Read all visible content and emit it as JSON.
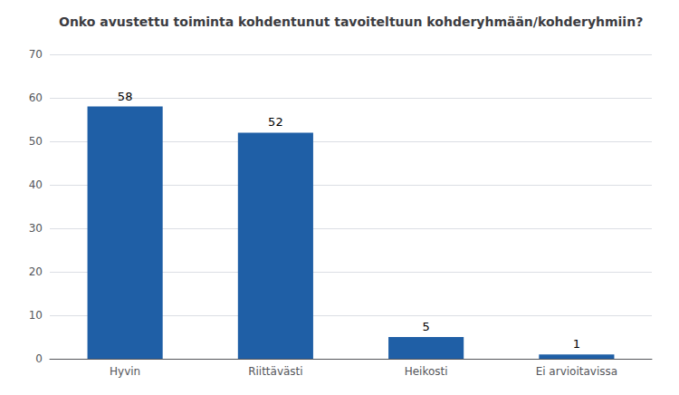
{
  "chart_data": {
    "type": "bar",
    "title": "Onko avustettu toiminta kohdentunut tavoiteltuun kohderyhmään/kohderyhmiin?",
    "categories": [
      "Hyvin",
      "Riittävästi",
      "Heikosti",
      "Ei arvioitavissa"
    ],
    "values": [
      58,
      52,
      5,
      1
    ],
    "color": "#1F5FA6",
    "ylim": [
      0,
      70
    ],
    "yticks": [
      0,
      10,
      20,
      30,
      40,
      50,
      60,
      70
    ],
    "grid": true,
    "data_labels": true
  }
}
